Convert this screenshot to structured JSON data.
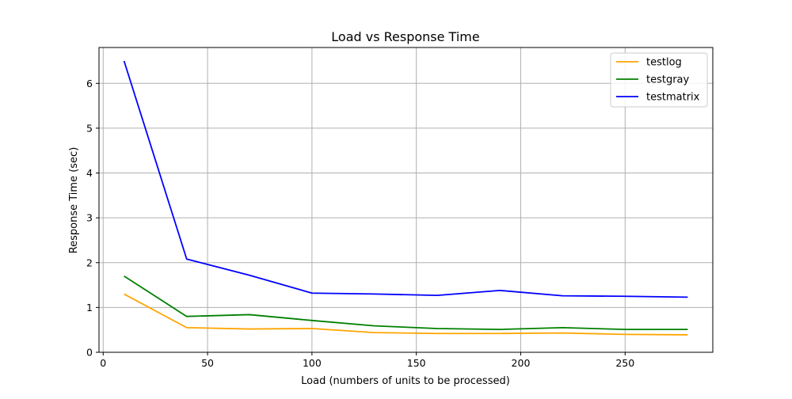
{
  "chart_data": {
    "type": "line",
    "title": "Load vs Response Time",
    "xlabel": "Load (numbers of units to be processed)",
    "ylabel": "Response Time (sec)",
    "xlim": [
      -2,
      292
    ],
    "ylim": [
      0,
      6.8
    ],
    "xticks": [
      0,
      50,
      100,
      150,
      200,
      250
    ],
    "yticks": [
      0,
      1,
      2,
      3,
      4,
      5,
      6
    ],
    "grid": true,
    "legend_position": "top-right",
    "x": [
      10,
      40,
      70,
      100,
      130,
      160,
      190,
      220,
      250,
      280
    ],
    "series": [
      {
        "name": "testlog",
        "color": "#ffa500",
        "values": [
          1.3,
          0.55,
          0.52,
          0.53,
          0.44,
          0.42,
          0.42,
          0.43,
          0.4,
          0.39
        ]
      },
      {
        "name": "testgray",
        "color": "#008000",
        "values": [
          1.7,
          0.8,
          0.84,
          0.71,
          0.59,
          0.53,
          0.51,
          0.55,
          0.51,
          0.51
        ]
      },
      {
        "name": "testmatrix",
        "color": "#0000ff",
        "values": [
          6.5,
          2.08,
          1.72,
          1.32,
          1.3,
          1.27,
          1.38,
          1.26,
          1.25,
          1.23
        ]
      }
    ]
  }
}
